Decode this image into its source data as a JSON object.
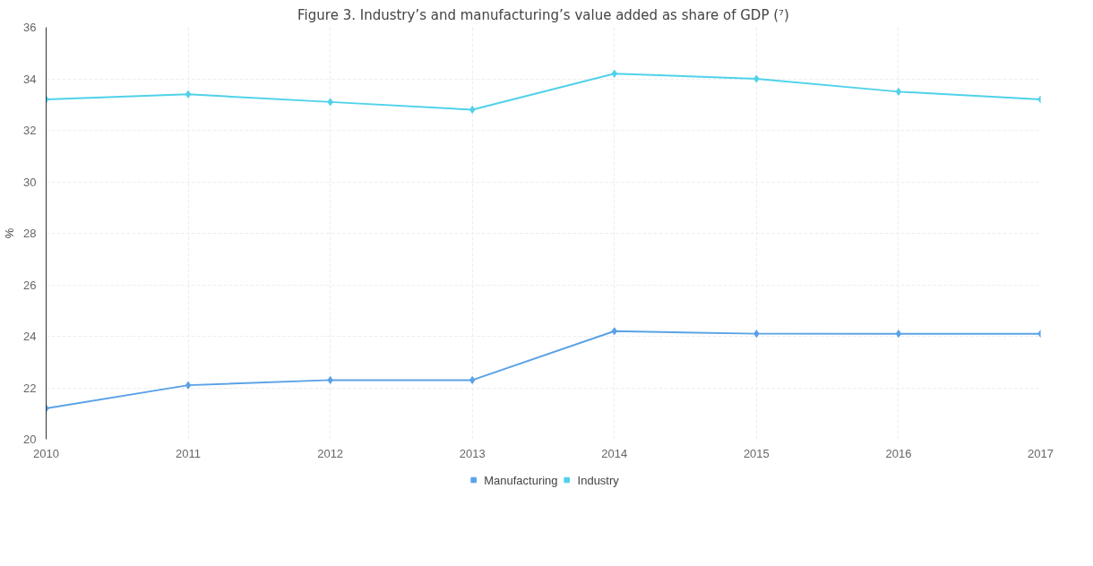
{
  "chart_data": {
    "type": "line",
    "title": "Figure 3. Industry’s and manufacturing’s value added as share of GDP (⁷)",
    "ylabel": "%",
    "x": [
      2010,
      2011,
      2012,
      2013,
      2014,
      2015,
      2016,
      2017
    ],
    "series": [
      {
        "name": "Manufacturing",
        "color": "#5aa2e6",
        "values": [
          21.2,
          22.1,
          22.3,
          22.3,
          24.2,
          24.1,
          24.1,
          24.1
        ]
      },
      {
        "name": "Industry",
        "color": "#4fd2ea",
        "values": [
          33.2,
          33.4,
          33.1,
          32.8,
          34.2,
          34.0,
          33.5,
          33.2
        ]
      }
    ],
    "xlim": [
      2010,
      2017
    ],
    "xticks": [
      2010,
      2011,
      2012,
      2013,
      2014,
      2015,
      2016,
      2017
    ],
    "ylim": [
      20,
      36
    ],
    "yticks": [
      20,
      22,
      24,
      26,
      28,
      30,
      32,
      34,
      36
    ],
    "grid": true,
    "legend": "bottom",
    "marker": "diamond",
    "line_style": "solid"
  }
}
